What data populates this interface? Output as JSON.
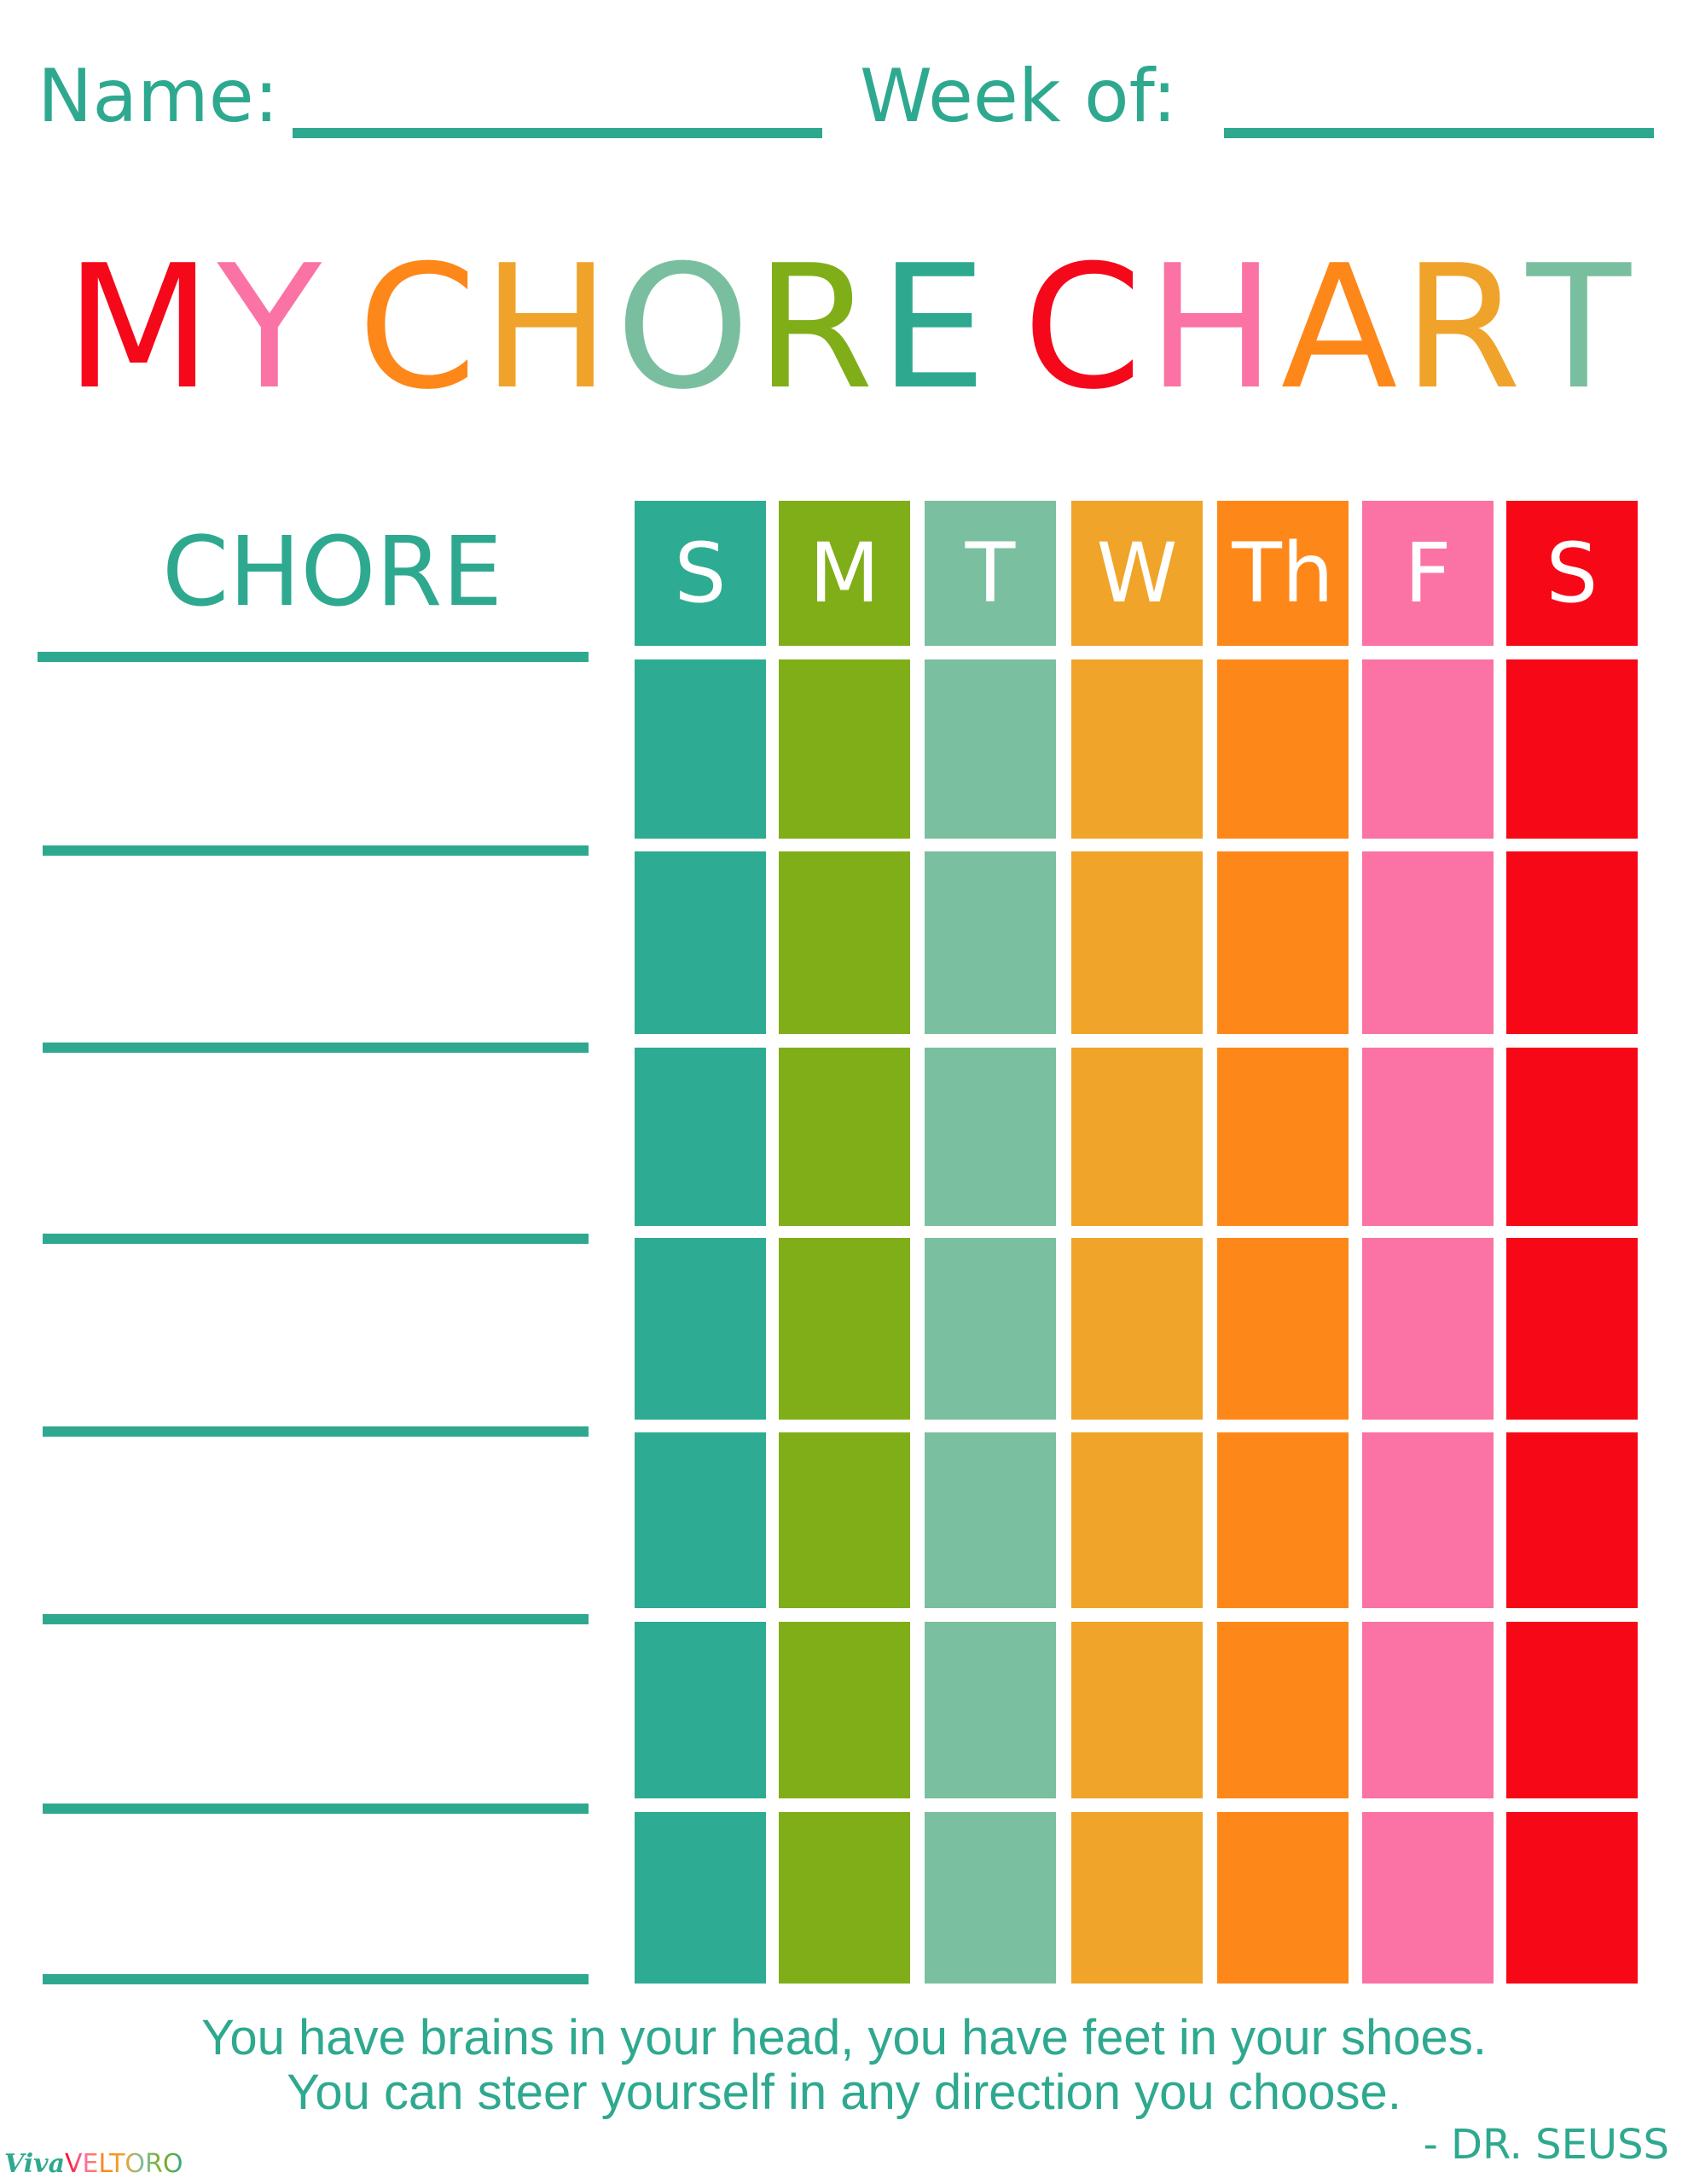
{
  "header": {
    "name_label": "Name:",
    "week_label": "Week of:"
  },
  "title": {
    "letters": [
      {
        "ch": "M",
        "color": "#f4081a"
      },
      {
        "ch": "Y",
        "color": "#fb72a4"
      },
      {
        "ch": " ",
        "color": "#fff"
      },
      {
        "ch": "C",
        "color": "#fd8719"
      },
      {
        "ch": "H",
        "color": "#f0a32a"
      },
      {
        "ch": "O",
        "color": "#79bf9f"
      },
      {
        "ch": "R",
        "color": "#80ae19"
      },
      {
        "ch": "E",
        "color": "#2ea98f"
      },
      {
        "ch": " ",
        "color": "#fff"
      },
      {
        "ch": "C",
        "color": "#f4081a"
      },
      {
        "ch": "H",
        "color": "#fb72a4"
      },
      {
        "ch": "A",
        "color": "#fd8719"
      },
      {
        "ch": "R",
        "color": "#f0a32a"
      },
      {
        "ch": "T",
        "color": "#79bf9f"
      }
    ]
  },
  "chore_header": "CHORE",
  "days": [
    {
      "label": "S",
      "color": "#2eab93"
    },
    {
      "label": "M",
      "color": "#80ae19"
    },
    {
      "label": "T",
      "color": "#7abf9f"
    },
    {
      "label": "W",
      "color": "#f0a429"
    },
    {
      "label": "Th",
      "color": "#fd8819"
    },
    {
      "label": "F",
      "color": "#fb72a4"
    },
    {
      "label": "S",
      "color": "#f70817"
    }
  ],
  "row_count": 7,
  "quote": {
    "line1": "You have brains in your head, you have feet in your shoes.",
    "line2": "You can steer yourself in any direction you choose.",
    "attribution": "- DR. SEUSS"
  },
  "logo": {
    "part1": "Viva",
    "part2": "VELTORO"
  }
}
